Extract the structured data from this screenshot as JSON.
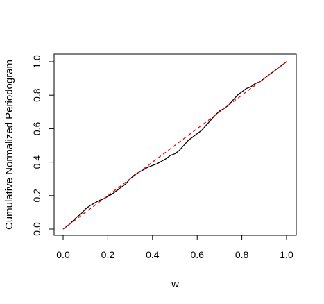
{
  "chart_data": {
    "type": "line",
    "title": "",
    "xlabel": "w",
    "ylabel": "Cumulative Normalized Periodogram",
    "xlim": [
      0,
      1
    ],
    "ylim": [
      0,
      1
    ],
    "x_ticks": [
      "0.0",
      "0.2",
      "0.4",
      "0.6",
      "0.8",
      "1.0"
    ],
    "y_ticks": [
      "0.0",
      "0.2",
      "0.4",
      "0.6",
      "0.8",
      "1.0"
    ],
    "grid": false,
    "legend": "none",
    "series": [
      {
        "style": "solid",
        "color": "#000000",
        "x": [
          0,
          0.03,
          0.06,
          0.08,
          0.1,
          0.12,
          0.14,
          0.16,
          0.18,
          0.2,
          0.22,
          0.24,
          0.26,
          0.28,
          0.3,
          0.32,
          0.34,
          0.36,
          0.38,
          0.4,
          0.42,
          0.44,
          0.46,
          0.48,
          0.5,
          0.52,
          0.54,
          0.56,
          0.58,
          0.6,
          0.62,
          0.64,
          0.66,
          0.68,
          0.7,
          0.72,
          0.74,
          0.76,
          0.78,
          0.8,
          0.82,
          0.84,
          0.86,
          0.88,
          0.9,
          0.92,
          0.94,
          0.96,
          0.98,
          1.0
        ],
        "y": [
          0,
          0.03,
          0.07,
          0.09,
          0.12,
          0.14,
          0.155,
          0.17,
          0.18,
          0.195,
          0.21,
          0.23,
          0.25,
          0.27,
          0.3,
          0.325,
          0.34,
          0.355,
          0.37,
          0.38,
          0.39,
          0.405,
          0.42,
          0.44,
          0.45,
          0.47,
          0.5,
          0.53,
          0.55,
          0.57,
          0.59,
          0.62,
          0.65,
          0.68,
          0.705,
          0.72,
          0.74,
          0.77,
          0.8,
          0.82,
          0.84,
          0.85,
          0.87,
          0.88,
          0.9,
          0.92,
          0.94,
          0.96,
          0.98,
          1.0
        ]
      },
      {
        "style": "dashed",
        "color": "#ff0000",
        "x": [
          0,
          1
        ],
        "y": [
          0,
          1
        ]
      }
    ]
  }
}
